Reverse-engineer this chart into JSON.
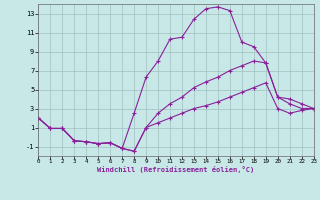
{
  "xlabel": "Windchill (Refroidissement éolien,°C)",
  "bg_color": "#c8e8e8",
  "grid_color": "#a0c0c0",
  "line_color": "#882299",
  "xlim": [
    0,
    23
  ],
  "ylim": [
    -2,
    14
  ],
  "xticks": [
    0,
    1,
    2,
    3,
    4,
    5,
    6,
    7,
    8,
    9,
    10,
    11,
    12,
    13,
    14,
    15,
    16,
    17,
    18,
    19,
    20,
    21,
    22,
    23
  ],
  "yticks": [
    -1,
    1,
    3,
    5,
    7,
    9,
    11,
    13
  ],
  "line1_x": [
    0,
    1,
    2,
    3,
    4,
    5,
    6,
    7,
    8,
    9,
    10,
    11,
    12,
    13,
    14,
    15,
    16,
    17,
    18,
    19,
    20,
    21,
    22,
    23
  ],
  "line1_y": [
    2.0,
    0.9,
    0.9,
    -0.4,
    -0.5,
    -0.7,
    -0.6,
    -1.2,
    2.5,
    6.3,
    8.0,
    10.3,
    10.5,
    12.4,
    13.5,
    13.7,
    13.3,
    10.0,
    9.5,
    7.8,
    4.2,
    3.5,
    3.0,
    3.0
  ],
  "line2_x": [
    0,
    1,
    2,
    3,
    4,
    5,
    6,
    7,
    8,
    9,
    10,
    11,
    12,
    13,
    14,
    15,
    16,
    17,
    18,
    19,
    20,
    21,
    22,
    23
  ],
  "line2_y": [
    2.0,
    0.9,
    0.9,
    -0.4,
    -0.5,
    -0.7,
    -0.6,
    -1.2,
    -1.5,
    1.0,
    2.5,
    3.5,
    4.2,
    5.2,
    5.8,
    6.3,
    7.0,
    7.5,
    8.0,
    7.8,
    4.2,
    4.0,
    3.5,
    3.0
  ],
  "line3_x": [
    0,
    1,
    2,
    3,
    4,
    5,
    6,
    7,
    8,
    9,
    10,
    11,
    12,
    13,
    14,
    15,
    16,
    17,
    18,
    19,
    20,
    21,
    22,
    23
  ],
  "line3_y": [
    2.0,
    0.9,
    0.9,
    -0.4,
    -0.5,
    -0.7,
    -0.6,
    -1.2,
    -1.5,
    1.0,
    1.5,
    2.0,
    2.5,
    3.0,
    3.3,
    3.7,
    4.2,
    4.7,
    5.2,
    5.7,
    3.0,
    2.5,
    2.8,
    3.0
  ]
}
